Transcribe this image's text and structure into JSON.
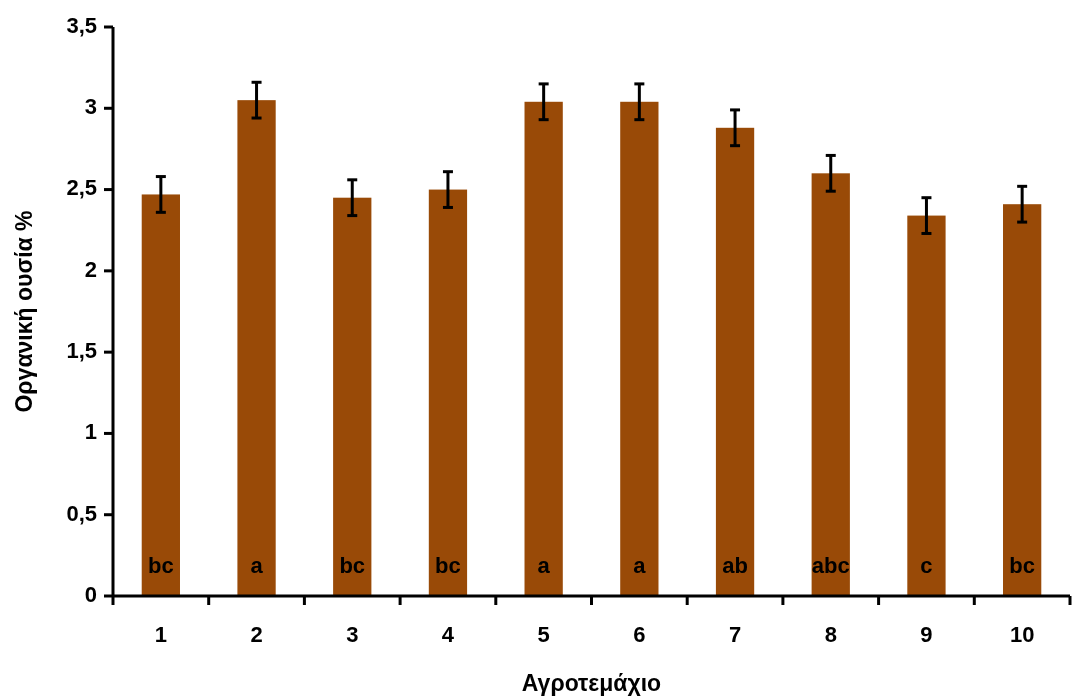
{
  "chart_data": {
    "type": "bar",
    "xlabel": "Αγροτεμάχιο",
    "ylabel": "Οργανική ουσία %",
    "categories": [
      "1",
      "2",
      "3",
      "4",
      "5",
      "6",
      "7",
      "8",
      "9",
      "10"
    ],
    "values": [
      2.47,
      3.05,
      2.45,
      2.5,
      3.04,
      3.04,
      2.88,
      2.6,
      2.34,
      2.41
    ],
    "errors": [
      0.11,
      0.11,
      0.11,
      0.11,
      0.11,
      0.11,
      0.11,
      0.11,
      0.11,
      0.11
    ],
    "color": "#994a07",
    "ylim": [
      0,
      3.5
    ],
    "yticks": [
      0,
      {
        "value": 0.5,
        "label": "0,5"
      },
      1,
      {
        "value": 1.5,
        "label": "1,5"
      },
      2,
      {
        "value": 2.5,
        "label": "2,5"
      },
      3,
      {
        "value": 3.5,
        "label": "3,5"
      }
    ],
    "grid": false,
    "annotations": [
      "bc",
      "a",
      "bc",
      "bc",
      "a",
      "a",
      "ab",
      "abc",
      "c",
      "bc"
    ]
  }
}
